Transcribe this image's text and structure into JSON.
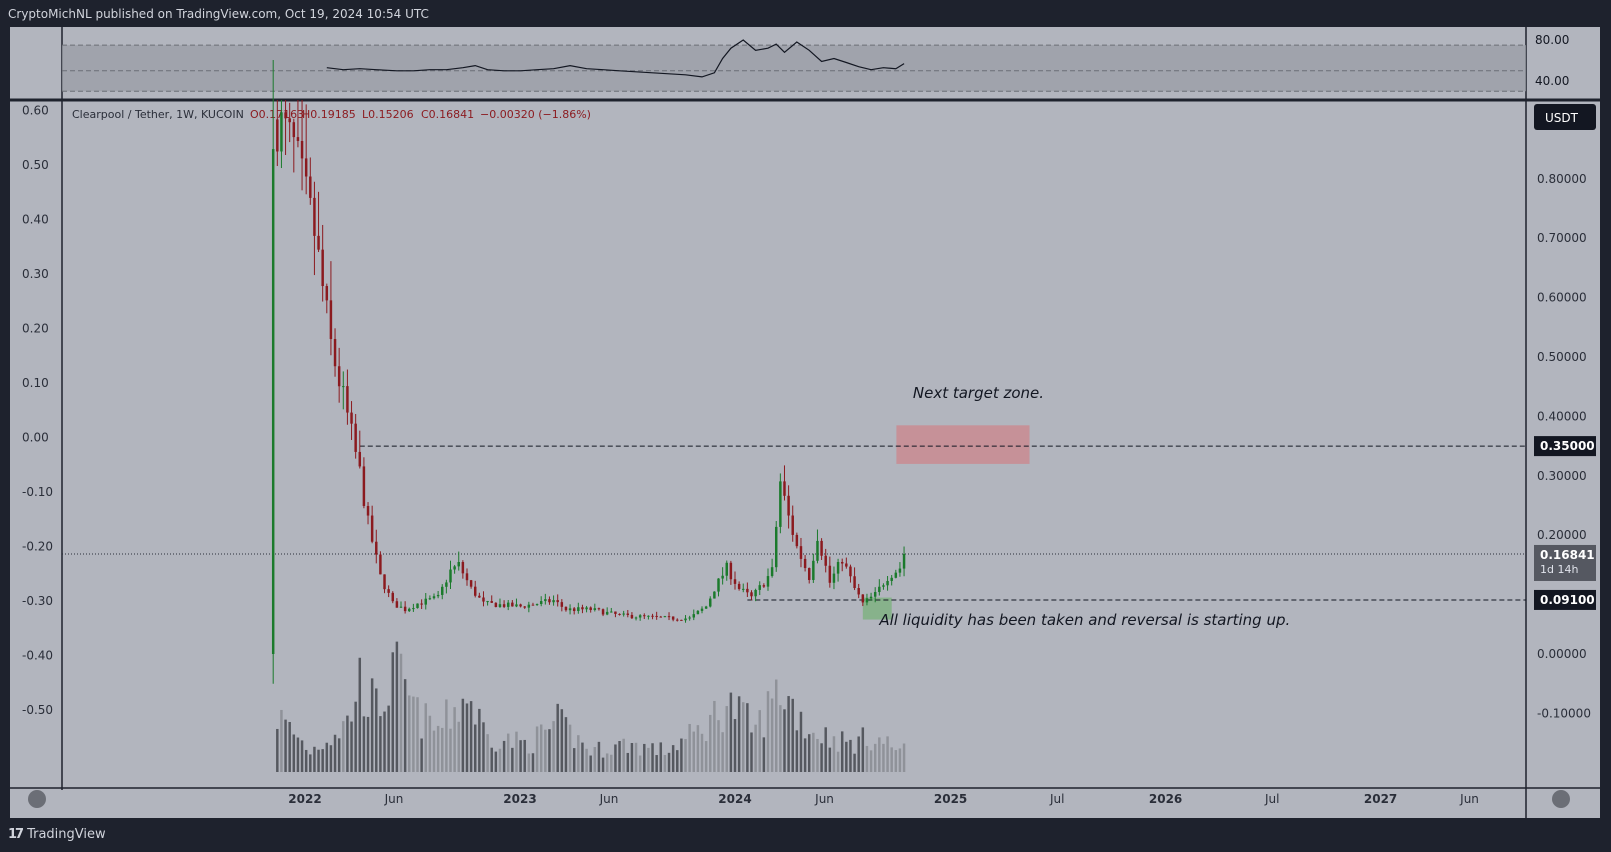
{
  "header": {
    "publish_note": "CryptoMichNL published on TradingView.com, Oct 19, 2024 10:54 UTC"
  },
  "footer": {
    "brand": "TradingView",
    "logo_icon": "tradingview-logo-icon"
  },
  "colors": {
    "background": "#b2b5be",
    "frame": "#1e222d",
    "up": "#1b7a2c",
    "down": "#8b1a1f",
    "target_zone": "#c98b92",
    "liquidity_zone": "#7fb283"
  },
  "chart_data": [
    {
      "type": "line",
      "name": "oscillator",
      "ylim": [
        30,
        90
      ],
      "y_ticks": [
        "80.00",
        "40.00"
      ],
      "bands": [
        75,
        30
      ],
      "midline": 50,
      "x": [
        "2022-02-07",
        "2022-03-07",
        "2022-04-04",
        "2022-05-02",
        "2022-06-06",
        "2022-07-04",
        "2022-08-01",
        "2022-08-29",
        "2022-09-26",
        "2022-10-17",
        "2022-11-07",
        "2022-12-05",
        "2023-01-02",
        "2023-01-30",
        "2023-02-27",
        "2023-03-27",
        "2023-04-24",
        "2023-05-22",
        "2023-06-19",
        "2023-07-17",
        "2023-08-14",
        "2023-09-11",
        "2023-10-09",
        "2023-11-06",
        "2023-11-27",
        "2023-12-11",
        "2023-12-25",
        "2024-01-15",
        "2024-02-05",
        "2024-02-26",
        "2024-03-11",
        "2024-03-25",
        "2024-04-15",
        "2024-05-06",
        "2024-05-27",
        "2024-06-17",
        "2024-07-08",
        "2024-07-29",
        "2024-08-19",
        "2024-09-09",
        "2024-09-30",
        "2024-10-14"
      ],
      "values": [
        53,
        51,
        52,
        51,
        50,
        50,
        51,
        51,
        53,
        55,
        51,
        50,
        50,
        51,
        52,
        55,
        52,
        51,
        50,
        49,
        48,
        47,
        46,
        44,
        48,
        62,
        72,
        80,
        70,
        72,
        76,
        68,
        78,
        70,
        59,
        62,
        58,
        54,
        51,
        53,
        52,
        57
      ]
    },
    {
      "type": "candlestick",
      "title": "Clearpool / Tether, 1W, KUCOIN",
      "ohlc_legend": {
        "open": "O0.17163",
        "high": "H0.19185",
        "low": "L0.15206",
        "close": "C0.16841",
        "change": "−0.00320 (−1.86%)"
      },
      "currency": "USDT",
      "x_ticks": [
        "2022",
        "Jun",
        "2023",
        "Jun",
        "2024",
        "Jun",
        "2025",
        "Jul",
        "2026",
        "Jul",
        "2027",
        "Jun"
      ],
      "left_ticks": [
        "0.60",
        "0.50",
        "0.40",
        "0.30",
        "0.20",
        "0.10",
        "0.00",
        "-0.10",
        "-0.20",
        "-0.30",
        "-0.40",
        "-0.50"
      ],
      "right_ticks": [
        "0.80000",
        "0.70000",
        "0.60000",
        "0.50000",
        "0.40000",
        "0.30000",
        "0.20000",
        "0.00000",
        "-0.10000"
      ],
      "price_labels": [
        {
          "value": "0.35000"
        },
        {
          "value": "0.16841",
          "sub": "1d 14h"
        },
        {
          "value": "0.09100"
        }
      ],
      "levels": [
        0.35,
        0.091
      ],
      "last_price": 0.16841,
      "annotations": [
        "Next target zone.",
        "All liquidity has been taken and reversal is starting up."
      ],
      "target_zone": {
        "x": [
          "2024-10-01",
          "2025-05-15"
        ],
        "price": [
          0.32,
          0.385
        ]
      },
      "liquidity_zone": {
        "x": [
          "2024-08-05",
          "2024-09-23"
        ],
        "price": [
          0.058,
          0.095
        ]
      },
      "anchors": [
        {
          "d": "2021-11-15",
          "p": 0.9
        },
        {
          "d": "2021-12-13",
          "p": 0.85
        },
        {
          "d": "2022-01-17",
          "p": 0.71
        },
        {
          "d": "2022-02-14",
          "p": 0.52
        },
        {
          "d": "2022-03-14",
          "p": 0.4
        },
        {
          "d": "2022-04-04",
          "p": 0.305
        },
        {
          "d": "2022-04-18",
          "p": 0.22
        },
        {
          "d": "2022-05-09",
          "p": 0.13
        },
        {
          "d": "2022-05-30",
          "p": 0.085
        },
        {
          "d": "2022-06-20",
          "p": 0.075
        },
        {
          "d": "2022-07-11",
          "p": 0.085
        },
        {
          "d": "2022-08-15",
          "p": 0.095
        },
        {
          "d": "2022-09-05",
          "p": 0.14
        },
        {
          "d": "2022-09-19",
          "p": 0.15
        },
        {
          "d": "2022-10-10",
          "p": 0.11
        },
        {
          "d": "2022-10-31",
          "p": 0.085
        },
        {
          "d": "2023-01-02",
          "p": 0.08
        },
        {
          "d": "2023-02-27",
          "p": 0.09
        },
        {
          "d": "2023-03-20",
          "p": 0.075
        },
        {
          "d": "2023-05-01",
          "p": 0.075
        },
        {
          "d": "2023-06-19",
          "p": 0.065
        },
        {
          "d": "2023-09-11",
          "p": 0.06
        },
        {
          "d": "2023-10-16",
          "p": 0.06
        },
        {
          "d": "2023-11-13",
          "p": 0.08
        },
        {
          "d": "2023-11-27",
          "p": 0.11
        },
        {
          "d": "2023-12-18",
          "p": 0.145
        },
        {
          "d": "2024-01-08",
          "p": 0.11
        },
        {
          "d": "2024-01-29",
          "p": 0.095
        },
        {
          "d": "2024-02-19",
          "p": 0.12
        },
        {
          "d": "2024-03-04",
          "p": 0.14
        },
        {
          "d": "2024-03-18",
          "p": 0.29
        },
        {
          "d": "2024-04-01",
          "p": 0.23
        },
        {
          "d": "2024-04-15",
          "p": 0.18
        },
        {
          "d": "2024-05-06",
          "p": 0.13
        },
        {
          "d": "2024-05-20",
          "p": 0.2
        },
        {
          "d": "2024-06-10",
          "p": 0.12
        },
        {
          "d": "2024-07-01",
          "p": 0.16
        },
        {
          "d": "2024-07-22",
          "p": 0.11
        },
        {
          "d": "2024-08-05",
          "p": 0.085
        },
        {
          "d": "2024-08-26",
          "p": 0.1
        },
        {
          "d": "2024-09-16",
          "p": 0.13
        },
        {
          "d": "2024-10-07",
          "p": 0.145
        },
        {
          "d": "2024-10-14",
          "p": 0.1684
        }
      ],
      "volume_anchors": [
        {
          "d": "2021-11-15",
          "v": 8
        },
        {
          "d": "2022-01-10",
          "v": 3
        },
        {
          "d": "2022-03-14",
          "v": 7
        },
        {
          "d": "2022-04-04",
          "v": 13
        },
        {
          "d": "2022-05-02",
          "v": 9
        },
        {
          "d": "2022-06-06",
          "v": 14
        },
        {
          "d": "2022-07-11",
          "v": 8
        },
        {
          "d": "2022-08-15",
          "v": 6
        },
        {
          "d": "2022-10-03",
          "v": 11
        },
        {
          "d": "2022-11-07",
          "v": 5
        },
        {
          "d": "2023-01-16",
          "v": 4
        },
        {
          "d": "2023-03-06",
          "v": 7
        },
        {
          "d": "2023-05-01",
          "v": 3
        },
        {
          "d": "2023-07-03",
          "v": 4
        },
        {
          "d": "2023-09-04",
          "v": 3
        },
        {
          "d": "2023-11-06",
          "v": 6
        },
        {
          "d": "2023-12-18",
          "v": 10
        },
        {
          "d": "2024-02-05",
          "v": 6
        },
        {
          "d": "2024-03-18",
          "v": 12
        },
        {
          "d": "2024-05-06",
          "v": 6
        },
        {
          "d": "2024-07-15",
          "v": 4
        },
        {
          "d": "2024-08-19",
          "v": 5
        },
        {
          "d": "2024-10-14",
          "v": 3
        }
      ]
    }
  ]
}
